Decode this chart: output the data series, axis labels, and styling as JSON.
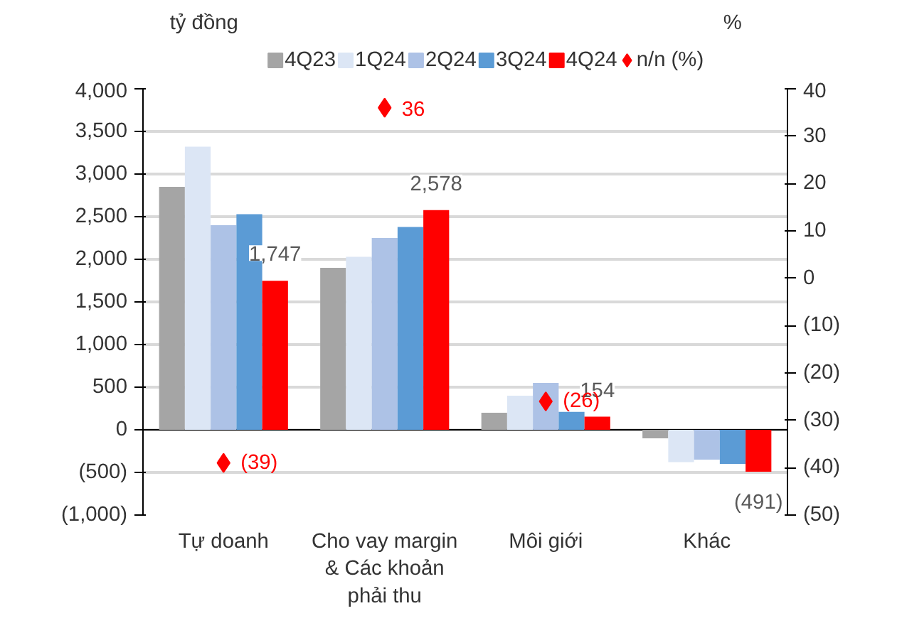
{
  "chart_data": {
    "type": "bar",
    "ylabel": "tỷ đồng",
    "y2label": "%",
    "categories": [
      "Tự doanh",
      "Cho vay margin & Các khoản phải thu",
      "Môi giới",
      "Khác"
    ],
    "series": [
      {
        "name": "4Q23",
        "color": "#a5a5a5",
        "values": [
          2850,
          1900,
          200,
          -100
        ]
      },
      {
        "name": "1Q24",
        "color": "#dce6f5",
        "values": [
          3320,
          2030,
          400,
          -380
        ]
      },
      {
        "name": "2Q24",
        "color": "#adc2e6",
        "values": [
          2400,
          2250,
          550,
          -350
        ]
      },
      {
        "name": "3Q24",
        "color": "#5b9bd5",
        "values": [
          2530,
          2380,
          210,
          -400
        ]
      },
      {
        "name": "4Q24",
        "color": "#ff0000",
        "values": [
          1747,
          2578,
          154,
          -491
        ],
        "value_labels": [
          "1,747",
          "2,578",
          "154",
          "(491)"
        ]
      },
      {
        "name": "n/n (%)",
        "type": "scatter",
        "axis": "y2",
        "color": "#ff0000",
        "marker": "diamond",
        "values": [
          -39,
          36,
          -26,
          null
        ],
        "value_labels": [
          "(39)",
          "36",
          "(26)",
          null
        ]
      }
    ],
    "ylim": [
      -1000,
      4000
    ],
    "yticks": [
      {
        "value": -1000,
        "label": "(1,000)"
      },
      {
        "value": -500,
        "label": "(500)"
      },
      0,
      500,
      {
        "value": 1000,
        "label": "1,000"
      },
      {
        "value": 1500,
        "label": "1,500"
      },
      {
        "value": 2000,
        "label": "2,000"
      },
      {
        "value": 2500,
        "label": "2,500"
      },
      {
        "value": 3000,
        "label": "3,000"
      },
      {
        "value": 3500,
        "label": "3,500"
      },
      {
        "value": 4000,
        "label": "4,000"
      }
    ],
    "y2lim": [
      -50,
      40
    ],
    "y2ticks": [
      {
        "value": -50,
        "label": "(50)"
      },
      {
        "value": -40,
        "label": "(40)"
      },
      {
        "value": -30,
        "label": "(30)"
      },
      {
        "value": -20,
        "label": "(20)"
      },
      {
        "value": -10,
        "label": "(10)"
      },
      0,
      10,
      20,
      30,
      40
    ],
    "grid": "y",
    "legend": "top"
  }
}
